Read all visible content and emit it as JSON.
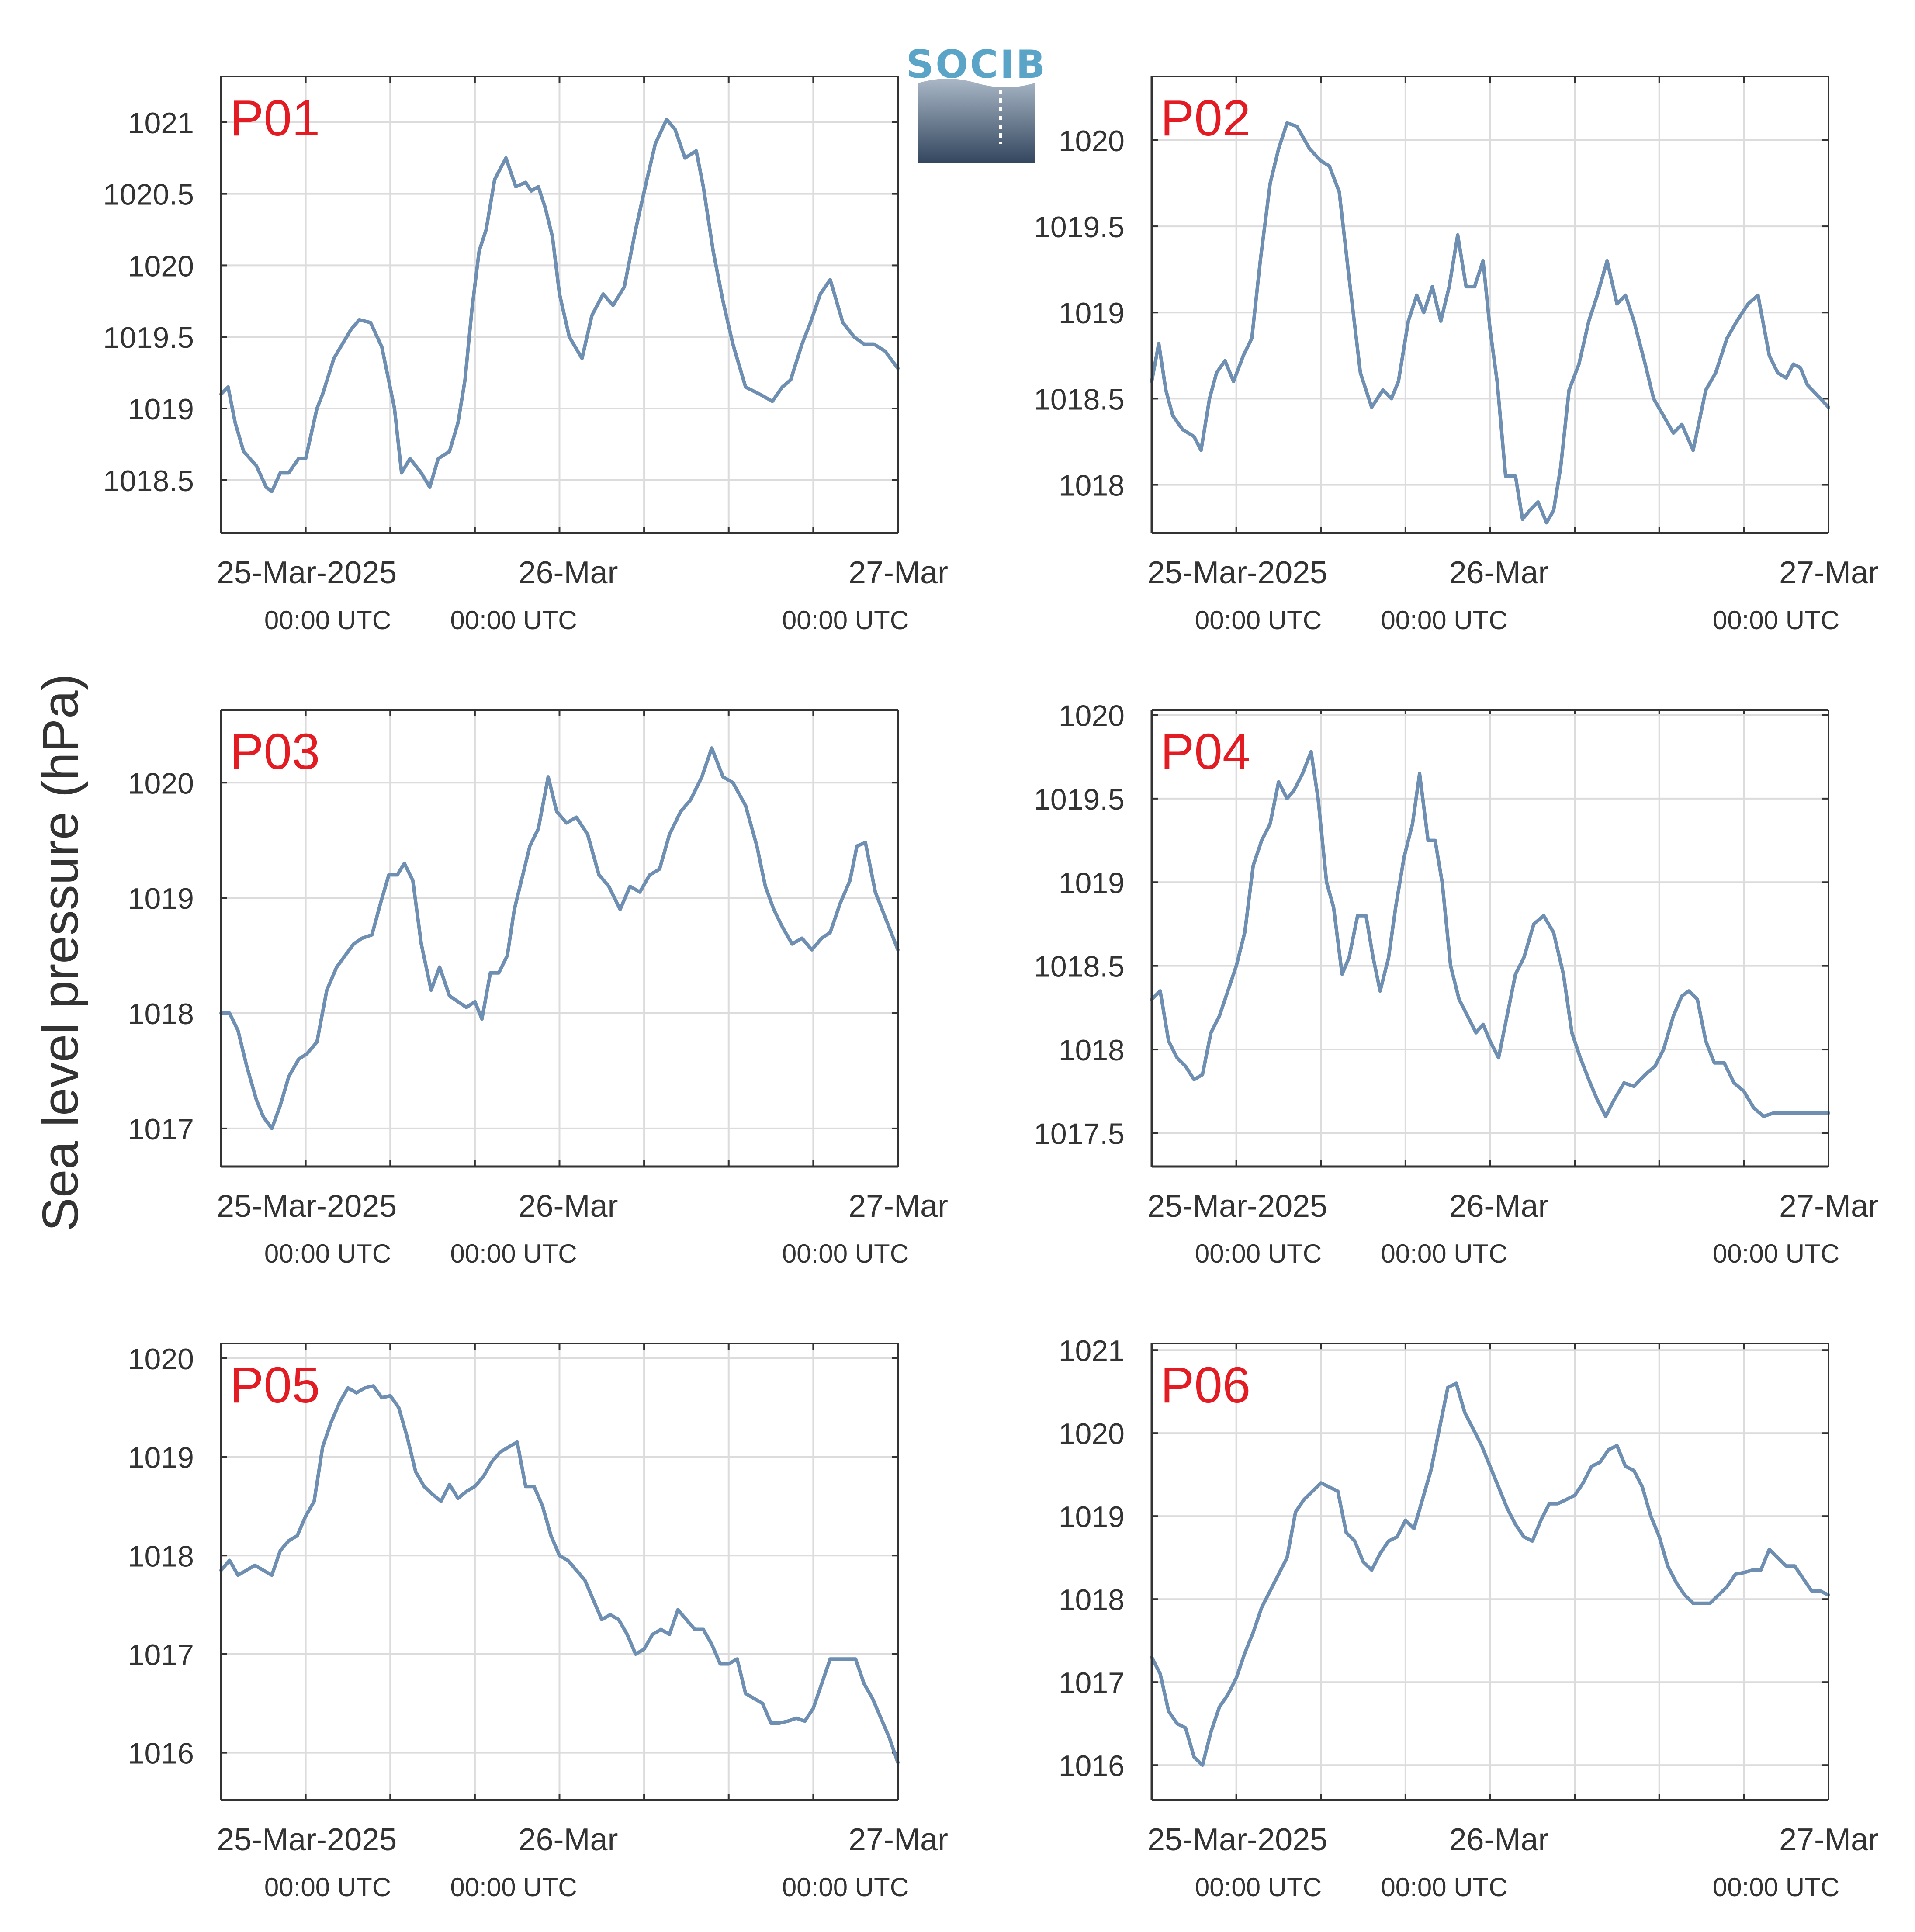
{
  "figure": {
    "ylabel": "Sea level pressure (hPa)",
    "logo_text": "SOCIB",
    "colors": {
      "line": "#6e8fb1",
      "panel_label": "#e31b23",
      "grid": "#dcdcdc",
      "axis": "#333333",
      "text": "#333333"
    }
  },
  "x_axis": {
    "range_hours": [
      0,
      48
    ],
    "major_ticks_hours": [
      0,
      24,
      48
    ],
    "minor_step_hours": 6,
    "tick_labels": [
      "25-Mar-2025",
      "26-Mar",
      "27-Mar"
    ],
    "tick_sublabels": [
      "00:00 UTC",
      "00:00 UTC",
      "00:00 UTC"
    ]
  },
  "chart_data": [
    {
      "type": "line",
      "label": "P01",
      "ylim": [
        1018.13,
        1021.32
      ],
      "yticks": [
        1018.5,
        1019,
        1019.5,
        1020,
        1020.5,
        1021
      ],
      "ytick_labels": [
        "1018.5",
        "1019",
        "1019.5",
        "1020",
        "1020.5",
        "1021"
      ],
      "x": [
        0,
        0.5,
        1,
        1.6,
        2.5,
        3.2,
        3.6,
        4.2,
        4.8,
        5.5,
        6,
        6.8,
        7.2,
        8,
        8.6,
        9.2,
        9.8,
        10.6,
        11.4,
        12.3,
        12.8,
        13.4,
        14.2,
        14.8,
        15.4,
        16.2,
        16.8,
        17.3,
        17.8,
        18.3,
        18.8,
        19.4,
        20.2,
        20.9,
        21.6,
        22,
        22.5,
        23,
        23.5,
        24,
        24.7,
        25.6,
        26.3,
        27.1,
        27.8,
        28.6,
        29.4,
        30.2,
        30.8,
        31.6,
        32.2,
        32.9,
        33.7,
        34.2,
        34.9,
        35.6,
        36.3,
        37.2,
        38.2,
        39.1,
        39.8,
        40.4,
        41.2,
        41.8,
        42.5,
        43.2,
        44.1,
        44.9,
        45.6,
        46.3,
        47.1,
        48
      ],
      "y": [
        1019.1,
        1019.15,
        1018.9,
        1018.7,
        1018.6,
        1018.45,
        1018.42,
        1018.55,
        1018.55,
        1018.65,
        1018.65,
        1019,
        1019.1,
        1019.35,
        1019.45,
        1019.55,
        1019.62,
        1019.6,
        1019.43,
        1019,
        1018.55,
        1018.65,
        1018.55,
        1018.45,
        1018.65,
        1018.7,
        1018.9,
        1019.2,
        1019.7,
        1020.1,
        1020.25,
        1020.6,
        1020.75,
        1020.55,
        1020.58,
        1020.52,
        1020.55,
        1020.4,
        1020.2,
        1019.8,
        1019.5,
        1019.35,
        1019.65,
        1019.8,
        1019.72,
        1019.85,
        1020.25,
        1020.6,
        1020.85,
        1021.02,
        1020.95,
        1020.75,
        1020.8,
        1020.55,
        1020.1,
        1019.75,
        1019.45,
        1019.15,
        1019.1,
        1019.05,
        1019.15,
        1019.2,
        1019.45,
        1019.6,
        1019.8,
        1019.9,
        1019.6,
        1019.5,
        1019.45,
        1019.45,
        1019.4,
        1019.28
      ]
    },
    {
      "type": "line",
      "label": "P02",
      "ylim": [
        1017.72,
        1020.37
      ],
      "yticks": [
        1018,
        1018.5,
        1019,
        1019.5,
        1020
      ],
      "ytick_labels": [
        "1018",
        "1018.5",
        "1019",
        "1019.5",
        "1020"
      ],
      "x": [
        0,
        0.5,
        1,
        1.5,
        2.2,
        3,
        3.5,
        4.1,
        4.6,
        5.2,
        5.8,
        6.5,
        7.1,
        7.7,
        8.4,
        9,
        9.6,
        10.3,
        11.2,
        12,
        12.6,
        13.3,
        14,
        14.8,
        15.6,
        16.4,
        17,
        17.5,
        18.2,
        18.8,
        19.3,
        19.9,
        20.5,
        21.1,
        21.7,
        22.3,
        22.9,
        23.5,
        24,
        24.5,
        25.1,
        25.8,
        26.3,
        26.8,
        27.4,
        28,
        28.5,
        29,
        29.6,
        30.3,
        31,
        31.6,
        32.3,
        33,
        33.6,
        34.2,
        35,
        35.6,
        36.3,
        37,
        37.6,
        38.4,
        39.3,
        40,
        40.8,
        41.5,
        42.3,
        43,
        43.8,
        44.4,
        45,
        45.5,
        46,
        46.5,
        47.2,
        48
      ],
      "y": [
        1018.6,
        1018.82,
        1018.55,
        1018.4,
        1018.32,
        1018.28,
        1018.2,
        1018.5,
        1018.65,
        1018.72,
        1018.6,
        1018.75,
        1018.85,
        1019.3,
        1019.75,
        1019.95,
        1020.1,
        1020.08,
        1019.95,
        1019.88,
        1019.85,
        1019.7,
        1019.2,
        1018.65,
        1018.45,
        1018.55,
        1018.5,
        1018.6,
        1018.95,
        1019.1,
        1019.0,
        1019.15,
        1018.95,
        1019.15,
        1019.45,
        1019.15,
        1019.15,
        1019.3,
        1018.9,
        1018.6,
        1018.05,
        1018.05,
        1017.8,
        1017.85,
        1017.9,
        1017.78,
        1017.85,
        1018.1,
        1018.55,
        1018.7,
        1018.95,
        1019.1,
        1019.3,
        1019.05,
        1019.1,
        1018.95,
        1018.7,
        1018.5,
        1018.4,
        1018.3,
        1018.35,
        1018.2,
        1018.55,
        1018.65,
        1018.85,
        1018.95,
        1019.05,
        1019.1,
        1018.75,
        1018.65,
        1018.62,
        1018.7,
        1018.68,
        1018.58,
        1018.52,
        1018.45
      ]
    },
    {
      "type": "line",
      "label": "P03",
      "ylim": [
        1016.67,
        1020.63
      ],
      "yticks": [
        1017,
        1018,
        1019,
        1020
      ],
      "ytick_labels": [
        "1017",
        "1018",
        "1019",
        "1020"
      ],
      "x": [
        0,
        0.6,
        1.2,
        1.8,
        2.5,
        3,
        3.6,
        4.2,
        4.8,
        5.5,
        6.1,
        6.8,
        7.5,
        8.2,
        8.8,
        9.4,
        10,
        10.7,
        11.3,
        11.9,
        12.5,
        13,
        13.6,
        14.2,
        14.9,
        15.5,
        16.2,
        16.8,
        17.4,
        18,
        18.5,
        19.1,
        19.7,
        20.3,
        20.8,
        21.4,
        21.9,
        22.5,
        23.2,
        23.8,
        24.5,
        25.2,
        26,
        26.8,
        27.5,
        28.3,
        29,
        29.7,
        30.4,
        31.1,
        31.8,
        32.6,
        33.3,
        34.1,
        34.8,
        35.6,
        36.3,
        37.2,
        38,
        38.6,
        39.2,
        39.8,
        40.5,
        41.2,
        41.9,
        42.6,
        43.2,
        43.9,
        44.6,
        45.1,
        45.7,
        46.4,
        47.2,
        48
      ],
      "y": [
        1018.0,
        1018.0,
        1017.85,
        1017.55,
        1017.25,
        1017.1,
        1017.0,
        1017.2,
        1017.45,
        1017.6,
        1017.65,
        1017.75,
        1018.2,
        1018.4,
        1018.5,
        1018.6,
        1018.65,
        1018.68,
        1018.95,
        1019.2,
        1019.2,
        1019.3,
        1019.15,
        1018.6,
        1018.2,
        1018.4,
        1018.15,
        1018.1,
        1018.05,
        1018.1,
        1017.95,
        1018.35,
        1018.35,
        1018.5,
        1018.9,
        1019.2,
        1019.45,
        1019.6,
        1020.05,
        1019.75,
        1019.65,
        1019.7,
        1019.55,
        1019.2,
        1019.1,
        1018.9,
        1019.1,
        1019.05,
        1019.2,
        1019.25,
        1019.55,
        1019.75,
        1019.85,
        1020.05,
        1020.3,
        1020.05,
        1020.0,
        1019.8,
        1019.45,
        1019.1,
        1018.9,
        1018.75,
        1018.6,
        1018.65,
        1018.55,
        1018.65,
        1018.7,
        1018.95,
        1019.15,
        1019.45,
        1019.48,
        1019.05,
        1018.8,
        1018.55
      ]
    },
    {
      "type": "line",
      "label": "P04",
      "ylim": [
        1017.3,
        1020.03
      ],
      "yticks": [
        1017.5,
        1018,
        1018.5,
        1019,
        1019.5,
        1020
      ],
      "ytick_labels": [
        "1017.5",
        "1018",
        "1018.5",
        "1019",
        "1019.5",
        "1020"
      ],
      "x": [
        0,
        0.6,
        1.2,
        1.8,
        2.4,
        3,
        3.6,
        4.2,
        4.8,
        5.4,
        6,
        6.6,
        7.2,
        7.8,
        8.4,
        9,
        9.6,
        10.1,
        10.7,
        11.3,
        11.8,
        12.4,
        12.9,
        13.5,
        14,
        14.6,
        15.2,
        15.7,
        16.2,
        16.8,
        17.3,
        17.9,
        18.5,
        19,
        19.6,
        20.1,
        20.6,
        21.2,
        21.8,
        22.4,
        23,
        23.5,
        24,
        24.6,
        25.2,
        25.8,
        26.4,
        27.1,
        27.8,
        28.5,
        29.2,
        29.8,
        30.4,
        31,
        31.6,
        32.2,
        32.8,
        33.5,
        34.2,
        35,
        35.7,
        36.3,
        37,
        37.6,
        38.1,
        38.7,
        39.3,
        39.9,
        40.6,
        41.3,
        42,
        42.7,
        43.4,
        44.1,
        44.8,
        45.4,
        46,
        46.7,
        47.3,
        48
      ],
      "y": [
        1018.3,
        1018.35,
        1018.05,
        1017.95,
        1017.9,
        1017.82,
        1017.85,
        1018.1,
        1018.2,
        1018.35,
        1018.5,
        1018.7,
        1019.1,
        1019.25,
        1019.35,
        1019.6,
        1019.5,
        1019.55,
        1019.65,
        1019.78,
        1019.5,
        1019.0,
        1018.85,
        1018.45,
        1018.55,
        1018.8,
        1018.8,
        1018.55,
        1018.35,
        1018.55,
        1018.85,
        1019.15,
        1019.35,
        1019.65,
        1019.25,
        1019.25,
        1019.0,
        1018.5,
        1018.3,
        1018.2,
        1018.1,
        1018.15,
        1018.05,
        1017.95,
        1018.2,
        1018.45,
        1018.55,
        1018.75,
        1018.8,
        1018.7,
        1018.45,
        1018.1,
        1017.95,
        1017.82,
        1017.7,
        1017.6,
        1017.7,
        1017.8,
        1017.78,
        1017.85,
        1017.9,
        1018.0,
        1018.2,
        1018.32,
        1018.35,
        1018.3,
        1018.05,
        1017.92,
        1017.92,
        1017.8,
        1017.75,
        1017.65,
        1017.6,
        1017.62,
        1017.62,
        1017.62,
        1017.62,
        1017.62,
        1017.62,
        1017.62
      ]
    },
    {
      "type": "line",
      "label": "P05",
      "ylim": [
        1015.52,
        1020.15
      ],
      "yticks": [
        1016,
        1017,
        1018,
        1019,
        1020
      ],
      "ytick_labels": [
        "1016",
        "1017",
        "1018",
        "1019",
        "1020"
      ],
      "x": [
        0,
        0.6,
        1.2,
        1.8,
        2.4,
        3,
        3.6,
        4.2,
        4.8,
        5.4,
        6,
        6.6,
        7.2,
        7.8,
        8.4,
        9,
        9.6,
        10.2,
        10.8,
        11.4,
        12,
        12.6,
        13.2,
        13.8,
        14.4,
        15,
        15.6,
        16.2,
        16.8,
        17.4,
        18,
        18.6,
        19.2,
        19.8,
        20.4,
        21,
        21.6,
        22.2,
        22.8,
        23.4,
        24,
        24.6,
        25.2,
        25.8,
        26.4,
        27,
        27.6,
        28.2,
        28.8,
        29.4,
        30,
        30.6,
        31.2,
        31.8,
        32.4,
        33,
        33.6,
        34.2,
        34.8,
        35.4,
        36,
        36.6,
        37.2,
        37.8,
        38.4,
        39,
        39.6,
        40.2,
        40.8,
        41.4,
        42,
        42.6,
        43.2,
        43.8,
        44.4,
        45,
        45.6,
        46.2,
        46.8,
        47.4,
        48
      ],
      "y": [
        1017.85,
        1017.95,
        1017.8,
        1017.85,
        1017.9,
        1017.85,
        1017.8,
        1018.05,
        1018.15,
        1018.2,
        1018.4,
        1018.55,
        1019.1,
        1019.35,
        1019.55,
        1019.7,
        1019.65,
        1019.7,
        1019.72,
        1019.6,
        1019.62,
        1019.5,
        1019.2,
        1018.85,
        1018.7,
        1018.62,
        1018.55,
        1018.72,
        1018.58,
        1018.65,
        1018.7,
        1018.8,
        1018.95,
        1019.05,
        1019.1,
        1019.15,
        1018.7,
        1018.7,
        1018.5,
        1018.2,
        1018.0,
        1017.95,
        1017.85,
        1017.75,
        1017.55,
        1017.35,
        1017.4,
        1017.35,
        1017.2,
        1017.0,
        1017.05,
        1017.2,
        1017.25,
        1017.2,
        1017.45,
        1017.35,
        1017.25,
        1017.25,
        1017.1,
        1016.9,
        1016.9,
        1016.95,
        1016.6,
        1016.55,
        1016.5,
        1016.3,
        1016.3,
        1016.32,
        1016.35,
        1016.32,
        1016.45,
        1016.7,
        1016.95,
        1016.95,
        1016.95,
        1016.95,
        1016.7,
        1016.55,
        1016.35,
        1016.15,
        1015.9
      ]
    },
    {
      "type": "line",
      "label": "P06",
      "ylim": [
        1015.58,
        1021.08
      ],
      "yticks": [
        1016,
        1017,
        1018,
        1019,
        1020,
        1021
      ],
      "ytick_labels": [
        "1016",
        "1017",
        "1018",
        "1019",
        "1020",
        "1021"
      ],
      "x": [
        0,
        0.6,
        1.2,
        1.8,
        2.4,
        3,
        3.6,
        4.2,
        4.8,
        5.4,
        6,
        6.6,
        7.2,
        7.8,
        8.4,
        9,
        9.6,
        10.2,
        10.8,
        11.4,
        12,
        12.6,
        13.2,
        13.8,
        14.4,
        15,
        15.6,
        16.2,
        16.8,
        17.4,
        18,
        18.6,
        19.2,
        19.8,
        20.4,
        21,
        21.6,
        22.2,
        22.8,
        23.4,
        24,
        24.6,
        25.2,
        25.8,
        26.4,
        27,
        27.6,
        28.2,
        28.8,
        29.4,
        30,
        30.6,
        31.2,
        31.8,
        32.4,
        33,
        33.6,
        34.2,
        34.8,
        35.4,
        36,
        36.6,
        37.2,
        37.8,
        38.4,
        39,
        39.6,
        40.2,
        40.8,
        41.4,
        42,
        42.6,
        43.2,
        43.8,
        44.4,
        45,
        45.6,
        46.2,
        46.8,
        47.4,
        48
      ],
      "y": [
        1017.3,
        1017.1,
        1016.65,
        1016.5,
        1016.45,
        1016.1,
        1016.0,
        1016.4,
        1016.7,
        1016.85,
        1017.05,
        1017.35,
        1017.6,
        1017.9,
        1018.1,
        1018.3,
        1018.5,
        1019.05,
        1019.2,
        1019.3,
        1019.4,
        1019.35,
        1019.3,
        1018.8,
        1018.7,
        1018.45,
        1018.35,
        1018.55,
        1018.7,
        1018.75,
        1018.95,
        1018.85,
        1019.2,
        1019.55,
        1020.05,
        1020.55,
        1020.6,
        1020.25,
        1020.05,
        1019.85,
        1019.6,
        1019.35,
        1019.1,
        1018.9,
        1018.75,
        1018.7,
        1018.95,
        1019.15,
        1019.15,
        1019.2,
        1019.25,
        1019.4,
        1019.6,
        1019.65,
        1019.8,
        1019.85,
        1019.6,
        1019.55,
        1019.35,
        1019.0,
        1018.75,
        1018.4,
        1018.2,
        1018.05,
        1017.95,
        1017.95,
        1017.95,
        1018.05,
        1018.15,
        1018.3,
        1018.32,
        1018.35,
        1018.35,
        1018.6,
        1018.5,
        1018.4,
        1018.4,
        1018.25,
        1018.1,
        1018.1,
        1018.05
      ]
    }
  ]
}
